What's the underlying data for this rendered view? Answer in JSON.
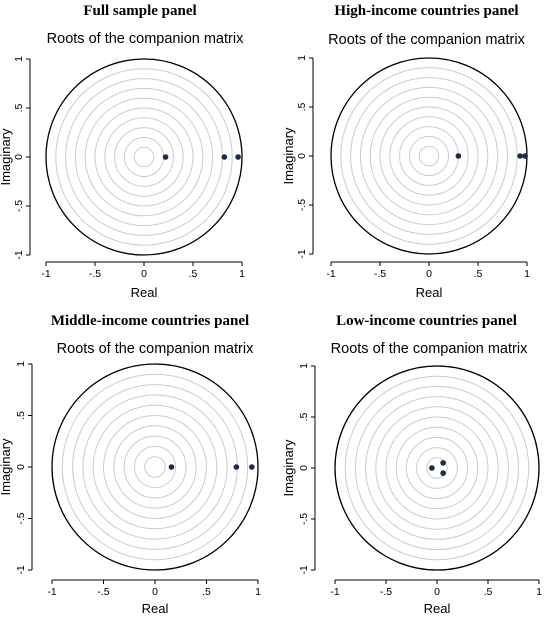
{
  "chart_data": [
    {
      "type": "scatter",
      "panel_title": "Full sample panel",
      "title": "Roots of the companion matrix",
      "xlabel": "Real",
      "ylabel": "Imaginary",
      "xlim": [
        -1,
        1
      ],
      "ylim": [
        -1,
        1
      ],
      "xticks": [
        "-1",
        "-.5",
        "0",
        ".5",
        "1"
      ],
      "yticks": [
        "-1",
        "-.5",
        "0",
        ".5",
        "1"
      ],
      "grid": "concentric circles",
      "points": [
        {
          "x": 0.22,
          "y": 0
        },
        {
          "x": 0.82,
          "y": 0
        },
        {
          "x": 0.96,
          "y": 0
        }
      ]
    },
    {
      "type": "scatter",
      "panel_title": "High-income countries panel",
      "title": "Roots of the companion matrix",
      "xlabel": "Real",
      "ylabel": "Imaginary",
      "xlim": [
        -1,
        1
      ],
      "ylim": [
        -1,
        1
      ],
      "xticks": [
        "-1",
        "-.5",
        "0",
        ".5",
        "1"
      ],
      "yticks": [
        "-1",
        "-.5",
        "0",
        ".5",
        "1"
      ],
      "grid": "concentric circles",
      "points": [
        {
          "x": 0.3,
          "y": 0
        },
        {
          "x": 0.93,
          "y": 0
        },
        {
          "x": 0.98,
          "y": 0
        }
      ]
    },
    {
      "type": "scatter",
      "panel_title": "Middle-income countries panel",
      "title": "Roots of the companion matrix",
      "xlabel": "Real",
      "ylabel": "Imaginary",
      "xlim": [
        -1,
        1
      ],
      "ylim": [
        -1,
        1
      ],
      "xticks": [
        "-1",
        "-.5",
        "0",
        ".5",
        "1"
      ],
      "yticks": [
        "-1",
        "-.5",
        "0",
        ".5",
        "1"
      ],
      "grid": "concentric circles",
      "points": [
        {
          "x": 0.16,
          "y": 0
        },
        {
          "x": 0.79,
          "y": 0
        },
        {
          "x": 0.94,
          "y": 0
        }
      ]
    },
    {
      "type": "scatter",
      "panel_title": "Low-income countries panel",
      "title": "Roots of the companion matrix",
      "xlabel": "Real",
      "ylabel": "Imaginary",
      "xlim": [
        -1,
        1
      ],
      "ylim": [
        -1,
        1
      ],
      "xticks": [
        "-1",
        "-.5",
        "0",
        ".5",
        "1"
      ],
      "yticks": [
        "-1",
        "-.5",
        "0",
        ".5",
        "1"
      ],
      "grid": "concentric circles",
      "points": [
        {
          "x": -0.05,
          "y": 0
        },
        {
          "x": 0.06,
          "y": 0.05
        },
        {
          "x": 0.06,
          "y": -0.05
        }
      ]
    }
  ],
  "colors": {
    "point": "#1b2b45",
    "unit_circle": "#000000",
    "grid_circle": "#cccccc"
  }
}
